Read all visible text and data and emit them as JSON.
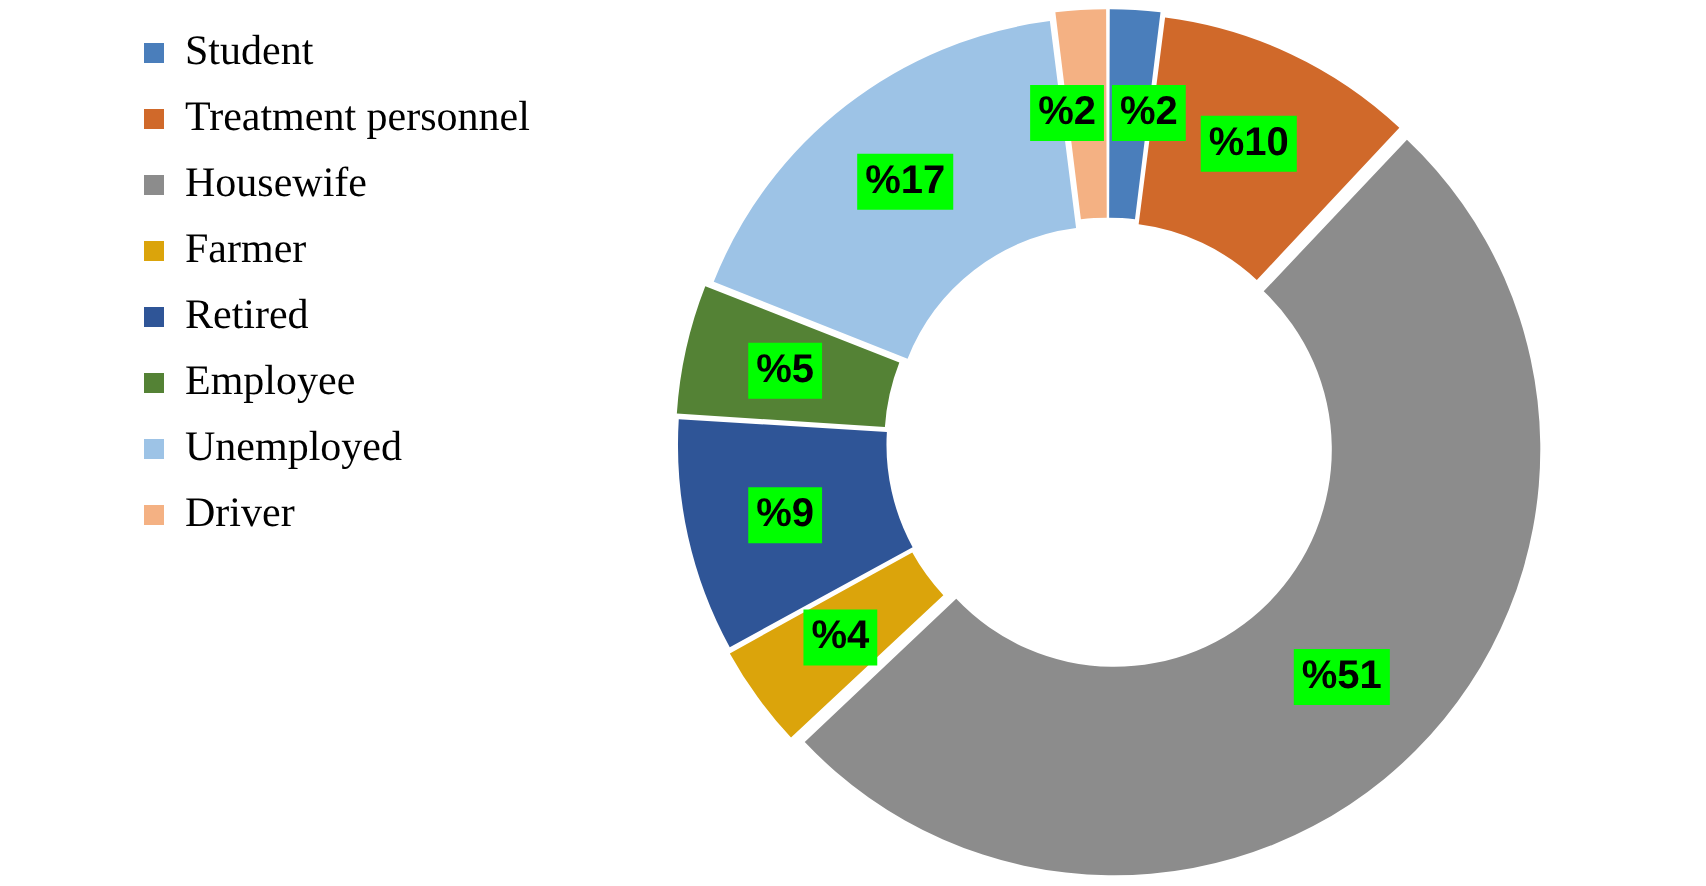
{
  "chart_data": {
    "type": "donut",
    "categories": [
      "Student",
      "Treatment personnel",
      "Housewife",
      "Farmer",
      "Retired",
      "Employee",
      "Unemployed",
      "Driver"
    ],
    "values": [
      2,
      10,
      51,
      4,
      9,
      5,
      17,
      2
    ],
    "colors": [
      "#4a7ebb",
      "#d0692a",
      "#8c8c8c",
      "#dba40b",
      "#2f5597",
      "#548235",
      "#9dc3e6",
      "#f4b183"
    ],
    "value_labels": [
      "%2",
      "%10",
      "%51",
      "%4",
      "%9",
      "%5",
      "%17",
      "%2"
    ],
    "legend": "left"
  }
}
